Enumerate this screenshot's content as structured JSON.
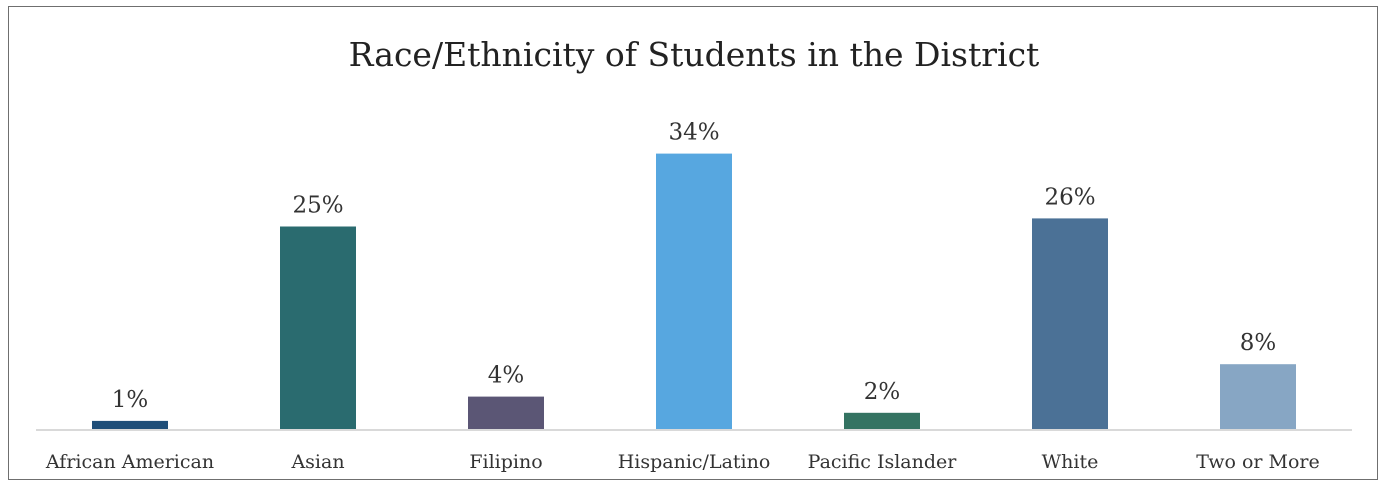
{
  "chart_data": {
    "type": "bar",
    "title": "Race/Ethnicity of Students in the District",
    "xlabel": "",
    "ylabel": "",
    "categories": [
      "African American",
      "Asian",
      "Filipino",
      "Hispanic/Latino",
      "Pacific Islander",
      "White",
      "Two or More"
    ],
    "values": [
      1,
      25,
      4,
      34,
      2,
      26,
      8
    ],
    "value_labels": [
      "1%",
      "25%",
      "4%",
      "34%",
      "2%",
      "26%",
      "8%"
    ],
    "unit": "%",
    "ylim": [
      0,
      40
    ],
    "grid": false,
    "legend": "none",
    "colors": [
      "#1f4e79",
      "#2a6b6f",
      "#5b5675",
      "#57a7e0",
      "#347362",
      "#4b7196",
      "#87a6c4"
    ]
  }
}
